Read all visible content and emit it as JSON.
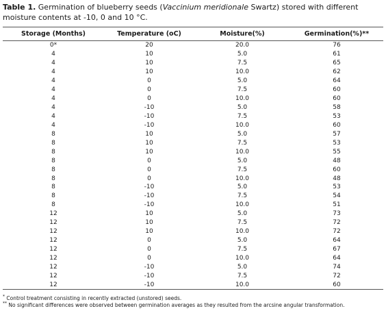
{
  "caption": {
    "label": "Table 1.",
    "text_before": " Germination of blueberry seeds (",
    "scientific_name": "Vaccinium meridionale",
    "text_after": " Swartz) stored with different moisture contents at -10, 0 and 10 °C."
  },
  "table": {
    "headers": [
      "Storage (Months)",
      "Temperature (oC)",
      "Moisture(%)",
      "Germination(%)**"
    ],
    "rows": [
      [
        "0*",
        "20",
        "20.0",
        "76"
      ],
      [
        "4",
        "10",
        "5.0",
        "61"
      ],
      [
        "4",
        "10",
        "7.5",
        "65"
      ],
      [
        "4",
        "10",
        "10.0",
        "62"
      ],
      [
        "4",
        "0",
        "5.0",
        "64"
      ],
      [
        "4",
        "0",
        "7.5",
        "60"
      ],
      [
        "4",
        "0",
        "10.0",
        "60"
      ],
      [
        "4",
        "-10",
        "5.0",
        "58"
      ],
      [
        "4",
        "-10",
        "7.5",
        "53"
      ],
      [
        "4",
        "-10",
        "10.0",
        "60"
      ],
      [
        "8",
        "10",
        "5.0",
        "57"
      ],
      [
        "8",
        "10",
        "7.5",
        "53"
      ],
      [
        "8",
        "10",
        "10.0",
        "55"
      ],
      [
        "8",
        "0",
        "5.0",
        "48"
      ],
      [
        "8",
        "0",
        "7.5",
        "60"
      ],
      [
        "8",
        "0",
        "10.0",
        "48"
      ],
      [
        "8",
        "-10",
        "5.0",
        "53"
      ],
      [
        "8",
        "-10",
        "7.5",
        "54"
      ],
      [
        "8",
        "-10",
        "10.0",
        "51"
      ],
      [
        "12",
        "10",
        "5.0",
        "73"
      ],
      [
        "12",
        "10",
        "7.5",
        "72"
      ],
      [
        "12",
        "10",
        "10.0",
        "72"
      ],
      [
        "12",
        "0",
        "5.0",
        "64"
      ],
      [
        "12",
        "0",
        "7.5",
        "67"
      ],
      [
        "12",
        "0",
        "10.0",
        "64"
      ],
      [
        "12",
        "-10",
        "5.0",
        "74"
      ],
      [
        "12",
        "-10",
        "7.5",
        "72"
      ],
      [
        "12",
        "-10",
        "10.0",
        "60"
      ]
    ]
  },
  "footnotes": [
    {
      "mark": "*",
      "text": " Control treatment consisting in recently extracted (unstored) seeds."
    },
    {
      "mark": "**",
      "text": " No significant differences were observed between germination averages as they resulted from the arcsine angular transformation."
    }
  ]
}
